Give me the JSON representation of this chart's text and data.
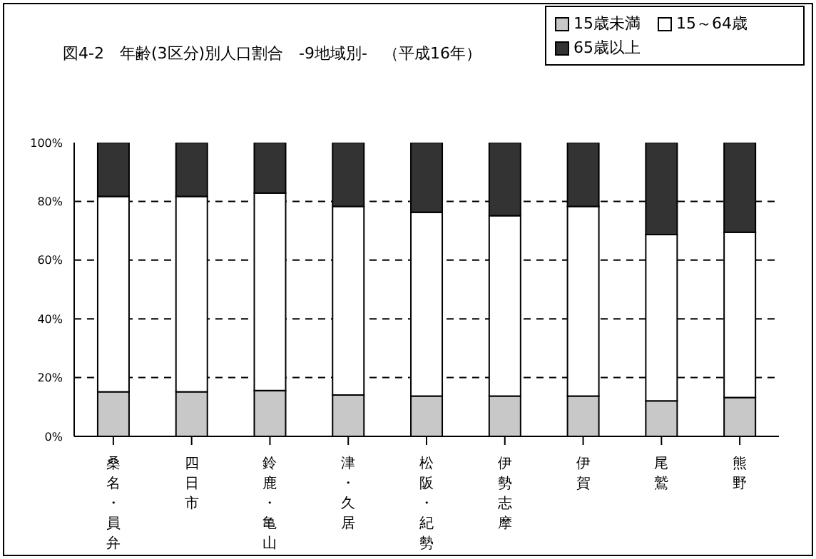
{
  "chart_data": {
    "type": "bar",
    "stacked": true,
    "title": "図4-2　年齢(3区分)別人口割合　-9地域別-　（平成16年）",
    "categories": [
      "桑名・員弁",
      "四日市",
      "鈴鹿・亀山",
      "津・久居",
      "松阪・紀勢",
      "伊勢志摩",
      "伊賀",
      "尾鷲",
      "熊野"
    ],
    "series": [
      {
        "name": "15歳未満",
        "color": "#c8c8c8",
        "values": [
          15.2,
          15.2,
          15.6,
          14.1,
          13.7,
          13.7,
          13.7,
          12.1,
          13.2
        ]
      },
      {
        "name": "15～64歳",
        "color": "#ffffff",
        "values": [
          66.5,
          66.5,
          67.2,
          64.2,
          62.6,
          61.4,
          64.6,
          56.6,
          56.3
        ]
      },
      {
        "name": "65歳以上",
        "color": "#333333",
        "values": [
          18.3,
          18.3,
          17.2,
          21.7,
          23.7,
          24.9,
          21.7,
          31.3,
          30.5
        ]
      }
    ],
    "ylim": [
      0,
      100
    ],
    "yticks": [
      {
        "value": 0,
        "label": "0%"
      },
      {
        "value": 20,
        "label": "20%"
      },
      {
        "value": 40,
        "label": "40%"
      },
      {
        "value": 60,
        "label": "60%"
      },
      {
        "value": 80,
        "label": "80%"
      },
      {
        "value": 100,
        "label": "100%"
      }
    ],
    "grid": "y",
    "legend": "top right"
  }
}
